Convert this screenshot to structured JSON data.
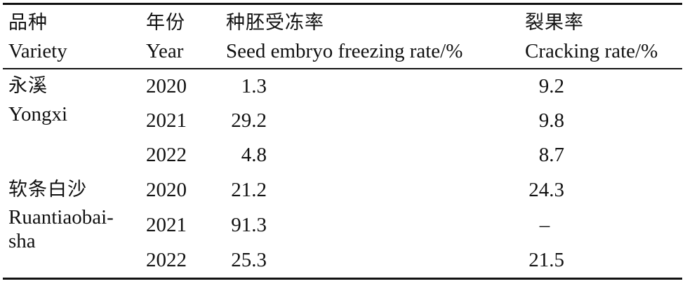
{
  "table": {
    "headers": [
      {
        "zh": "品种",
        "en": "Variety"
      },
      {
        "zh": "年份",
        "en": "Year"
      },
      {
        "zh": "种胚受冻率",
        "en": "Seed embryo freezing rate/%"
      },
      {
        "zh": "裂果率",
        "en": "Cracking rate/%"
      }
    ],
    "groups": [
      {
        "variety_zh": "永溪",
        "variety_en": "Yongxi",
        "rows": [
          {
            "year": "2020",
            "freezing": "1.3",
            "cracking": "9.2"
          },
          {
            "year": "2021",
            "freezing": "29.2",
            "cracking": "9.8"
          },
          {
            "year": "2022",
            "freezing": "4.8",
            "cracking": "8.7"
          }
        ]
      },
      {
        "variety_zh": "软条白沙",
        "variety_en_line1": "Ruantiaobai-",
        "variety_en_line2": "sha",
        "rows": [
          {
            "year": "2020",
            "freezing": "21.2",
            "cracking": "24.3"
          },
          {
            "year": "2021",
            "freezing": "91.3",
            "cracking": "–"
          },
          {
            "year": "2022",
            "freezing": "25.3",
            "cracking": "21.5"
          }
        ]
      }
    ]
  }
}
